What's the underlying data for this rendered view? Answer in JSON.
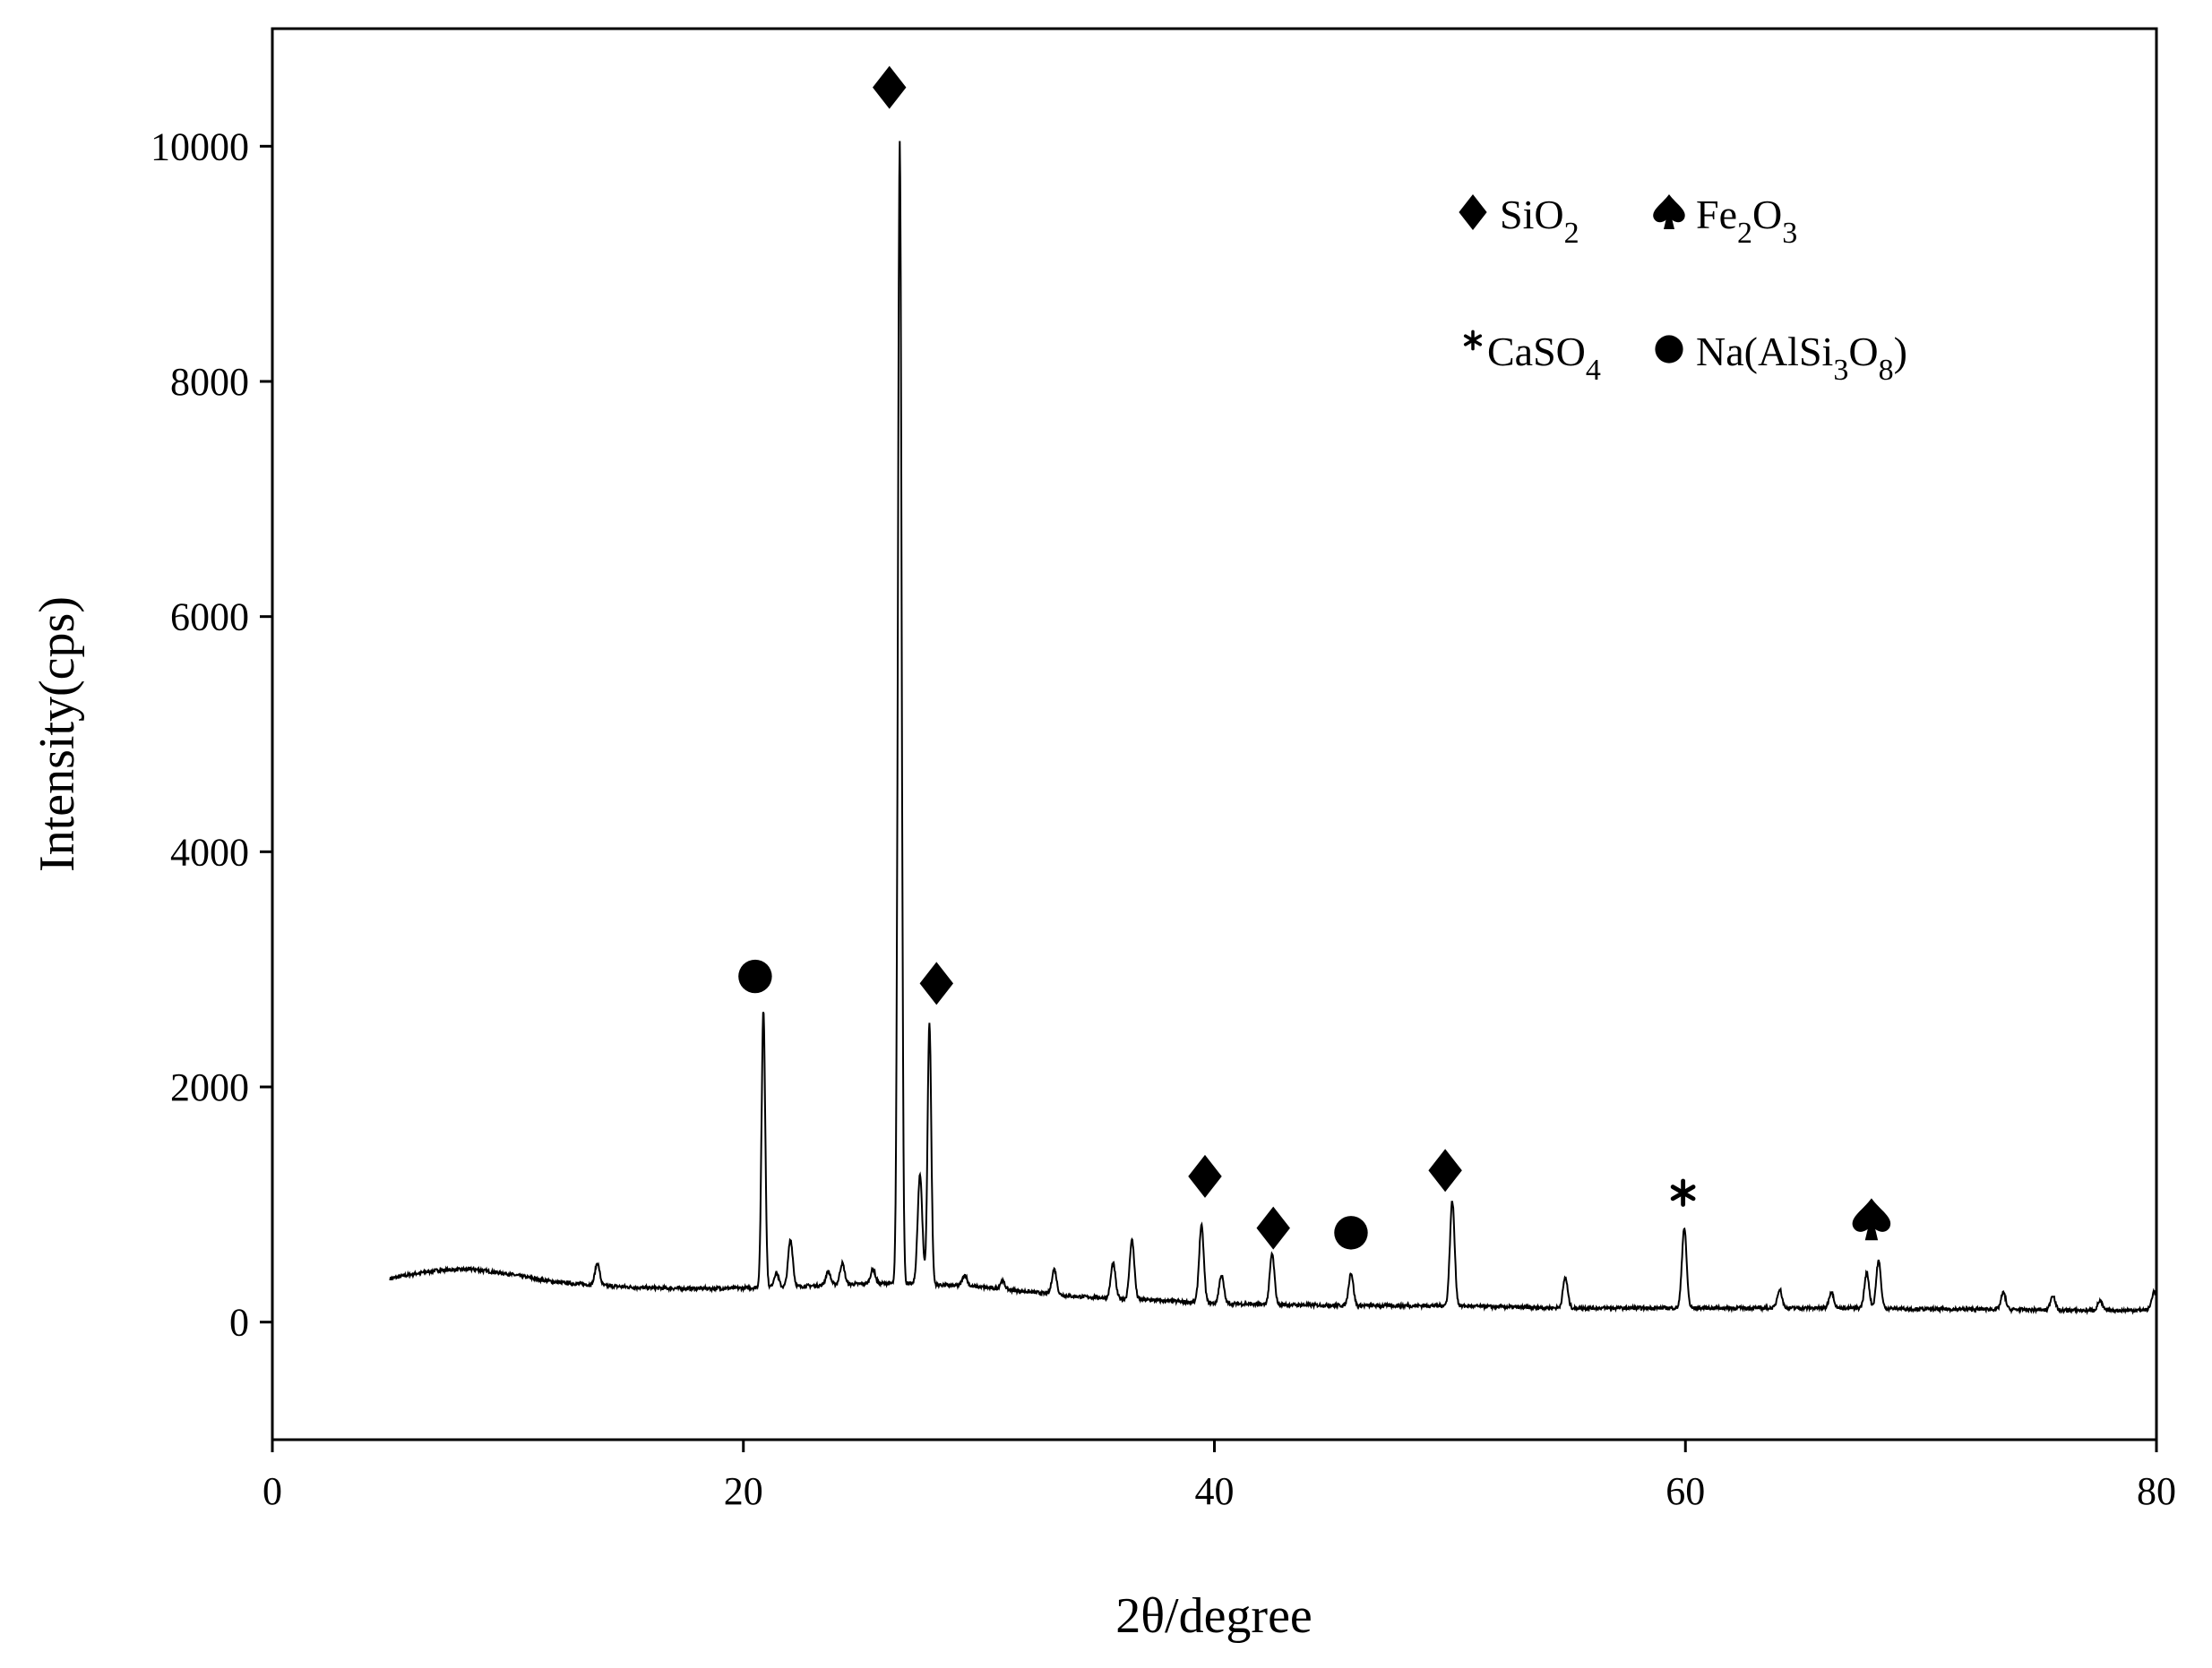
{
  "chart_data": {
    "type": "line",
    "xlabel": "2θ/degree",
    "ylabel": "Intensity(cps)",
    "xlim": [
      0,
      80
    ],
    "ylim": [
      -1000,
      11000
    ],
    "x_ticks": [
      0,
      20,
      40,
      60,
      80
    ],
    "y_ticks": [
      0,
      2000,
      4000,
      6000,
      8000,
      10000
    ],
    "grid": false,
    "legend_position": "top-right",
    "legend": [
      {
        "symbol": "diamond",
        "text": "SiO",
        "sub": "2"
      },
      {
        "symbol": "spade",
        "text": "Fe",
        "sub": "2",
        "text2": "O",
        "sub2": "3"
      },
      {
        "symbol": "asterisk",
        "text": "CaSO",
        "sub": "4"
      },
      {
        "symbol": "circle",
        "text": "Na(AlSi",
        "sub": "3",
        "text2": "O",
        "sub2": "8",
        "text3": ")"
      }
    ],
    "baseline": [
      [
        5,
        370
      ],
      [
        6,
        410
      ],
      [
        7,
        440
      ],
      [
        8.5,
        450
      ],
      [
        10,
        410
      ],
      [
        12,
        340
      ],
      [
        14,
        310
      ],
      [
        16,
        290
      ],
      [
        18,
        285
      ],
      [
        20,
        290
      ],
      [
        22,
        300
      ],
      [
        24,
        320
      ],
      [
        26,
        330
      ],
      [
        28,
        320
      ],
      [
        30,
        300
      ],
      [
        32,
        260
      ],
      [
        34,
        220
      ],
      [
        36,
        200
      ],
      [
        38,
        180
      ],
      [
        40,
        160
      ],
      [
        42,
        150
      ],
      [
        44,
        145
      ],
      [
        46,
        140
      ],
      [
        48,
        140
      ],
      [
        50,
        140
      ],
      [
        52,
        130
      ],
      [
        55,
        120
      ],
      [
        58,
        120
      ],
      [
        60,
        120
      ],
      [
        63,
        120
      ],
      [
        66,
        120
      ],
      [
        68,
        120
      ],
      [
        70,
        110
      ],
      [
        73,
        110
      ],
      [
        76,
        100
      ],
      [
        79,
        100
      ],
      [
        80,
        110
      ]
    ],
    "peaks": [
      {
        "x": 13.8,
        "y": 500
      },
      {
        "x": 20.85,
        "y": 2650
      },
      {
        "x": 21.4,
        "y": 420
      },
      {
        "x": 22.0,
        "y": 700
      },
      {
        "x": 23.6,
        "y": 430
      },
      {
        "x": 24.2,
        "y": 500
      },
      {
        "x": 25.5,
        "y": 450
      },
      {
        "x": 26.64,
        "y": 10050
      },
      {
        "x": 27.5,
        "y": 1250
      },
      {
        "x": 27.9,
        "y": 2550
      },
      {
        "x": 29.4,
        "y": 400
      },
      {
        "x": 31.0,
        "y": 350
      },
      {
        "x": 33.2,
        "y": 450
      },
      {
        "x": 35.7,
        "y": 500
      },
      {
        "x": 36.5,
        "y": 700
      },
      {
        "x": 39.45,
        "y": 820
      },
      {
        "x": 40.3,
        "y": 400
      },
      {
        "x": 42.45,
        "y": 580
      },
      {
        "x": 45.8,
        "y": 420
      },
      {
        "x": 50.1,
        "y": 1030
      },
      {
        "x": 54.9,
        "y": 380
      },
      {
        "x": 59.95,
        "y": 800
      },
      {
        "x": 64.0,
        "y": 280
      },
      {
        "x": 66.2,
        "y": 260
      },
      {
        "x": 67.7,
        "y": 420
      },
      {
        "x": 68.2,
        "y": 520
      },
      {
        "x": 73.5,
        "y": 250
      },
      {
        "x": 75.6,
        "y": 230
      },
      {
        "x": 77.6,
        "y": 180
      },
      {
        "x": 79.9,
        "y": 260
      }
    ],
    "peak_markers": [
      {
        "symbol": "diamond",
        "x": 26.2,
        "y": 10500
      },
      {
        "symbol": "diamond",
        "x": 28.2,
        "y": 2880
      },
      {
        "symbol": "circle",
        "x": 20.5,
        "y": 2940
      },
      {
        "symbol": "diamond",
        "x": 39.6,
        "y": 1240
      },
      {
        "symbol": "diamond",
        "x": 42.5,
        "y": 800
      },
      {
        "symbol": "circle",
        "x": 45.8,
        "y": 760
      },
      {
        "symbol": "diamond",
        "x": 49.8,
        "y": 1290
      },
      {
        "symbol": "asterisk",
        "x": 59.9,
        "y": 1100
      },
      {
        "symbol": "spade",
        "x": 67.9,
        "y": 870
      }
    ]
  }
}
